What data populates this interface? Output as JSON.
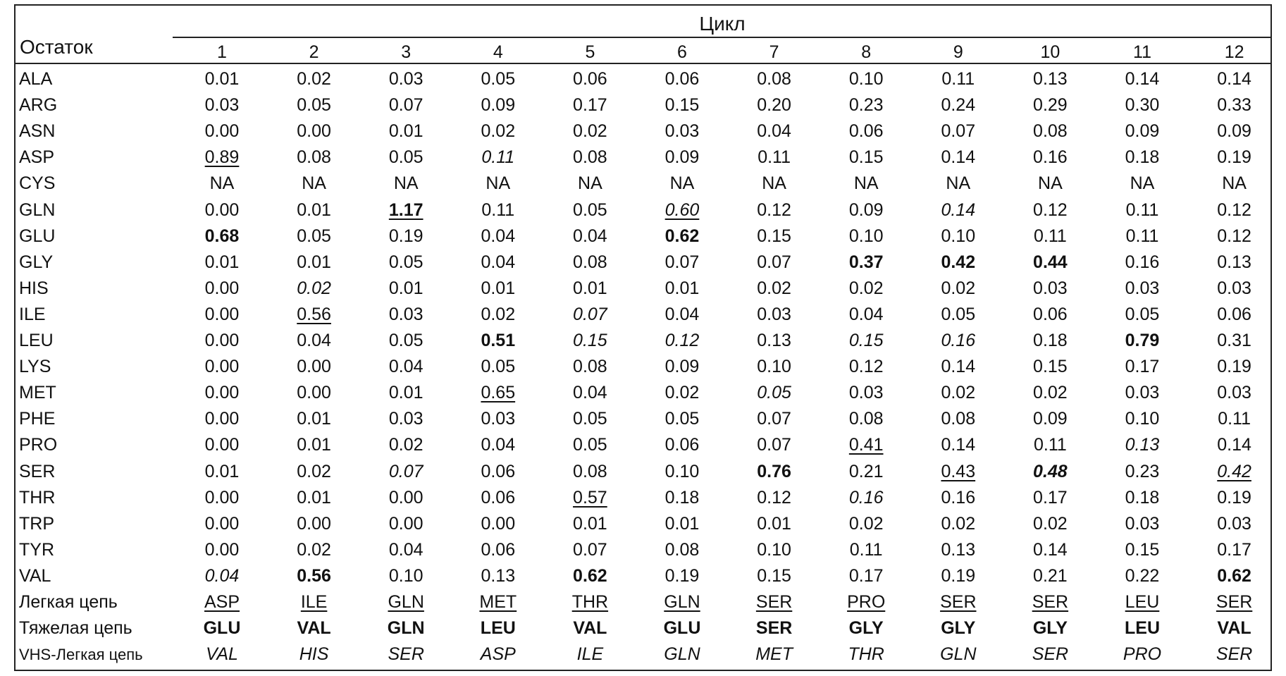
{
  "header": {
    "residue": "Остаток",
    "cycle": "Цикл",
    "cycles": [
      "1",
      "2",
      "3",
      "4",
      "5",
      "6",
      "7",
      "8",
      "9",
      "10",
      "11",
      "12"
    ]
  },
  "rows": [
    {
      "label": "ALA",
      "values": [
        "0.01",
        "0.02",
        "0.03",
        "0.05",
        "0.06",
        "0.06",
        "0.08",
        "0.10",
        "0.11",
        "0.13",
        "0.14",
        "0.14"
      ],
      "styles": [
        "",
        "",
        "",
        "",
        "",
        "",
        "",
        "",
        "",
        "",
        "",
        ""
      ]
    },
    {
      "label": "ARG",
      "values": [
        "0.03",
        "0.05",
        "0.07",
        "0.09",
        "0.17",
        "0.15",
        "0.20",
        "0.23",
        "0.24",
        "0.29",
        "0.30",
        "0.33"
      ],
      "styles": [
        "",
        "",
        "",
        "",
        "",
        "",
        "",
        "",
        "",
        "",
        "",
        ""
      ]
    },
    {
      "label": "ASN",
      "values": [
        "0.00",
        "0.00",
        "0.01",
        "0.02",
        "0.02",
        "0.03",
        "0.04",
        "0.06",
        "0.07",
        "0.08",
        "0.09",
        "0.09"
      ],
      "styles": [
        "",
        "",
        "",
        "",
        "",
        "",
        "",
        "",
        "",
        "",
        "",
        ""
      ]
    },
    {
      "label": "ASP",
      "values": [
        "0.89",
        "0.08",
        "0.05",
        "0.11",
        "0.08",
        "0.09",
        "0.11",
        "0.15",
        "0.14",
        "0.16",
        "0.18",
        "0.19"
      ],
      "styles": [
        "u",
        "",
        "",
        "i",
        "",
        "",
        "",
        "",
        "",
        "",
        "",
        ""
      ]
    },
    {
      "label": "CYS",
      "values": [
        "NA",
        "NA",
        "NA",
        "NA",
        "NA",
        "NA",
        "NA",
        "NA",
        "NA",
        "NA",
        "NA",
        "NA"
      ],
      "styles": [
        "",
        "",
        "",
        "",
        "",
        "",
        "",
        "",
        "",
        "",
        "",
        ""
      ]
    },
    {
      "label": "GLN",
      "values": [
        "0.00",
        "0.01",
        "1.17",
        "0.11",
        "0.05",
        "0.60",
        "0.12",
        "0.09",
        "0.14",
        "0.12",
        "0.11",
        "0.12"
      ],
      "styles": [
        "",
        "",
        "bu",
        "",
        "",
        "iu",
        "",
        "",
        "i",
        "",
        "",
        ""
      ]
    },
    {
      "label": "GLU",
      "values": [
        "0.68",
        "0.05",
        "0.19",
        "0.04",
        "0.04",
        "0.62",
        "0.15",
        "0.10",
        "0.10",
        "0.11",
        "0.11",
        "0.12"
      ],
      "styles": [
        "b",
        "",
        "",
        "",
        "",
        "b",
        "",
        "",
        "",
        "",
        "",
        ""
      ]
    },
    {
      "label": "GLY",
      "values": [
        "0.01",
        "0.01",
        "0.05",
        "0.04",
        "0.08",
        "0.07",
        "0.07",
        "0.37",
        "0.42",
        "0.44",
        "0.16",
        "0.13"
      ],
      "styles": [
        "",
        "",
        "",
        "",
        "",
        "",
        "",
        "b",
        "b",
        "b",
        "",
        ""
      ]
    },
    {
      "label": "HIS",
      "values": [
        "0.00",
        "0.02",
        "0.01",
        "0.01",
        "0.01",
        "0.01",
        "0.02",
        "0.02",
        "0.02",
        "0.03",
        "0.03",
        "0.03"
      ],
      "styles": [
        "",
        "i",
        "",
        "",
        "",
        "",
        "",
        "",
        "",
        "",
        "",
        ""
      ]
    },
    {
      "label": "ILE",
      "values": [
        "0.00",
        "0.56",
        "0.03",
        "0.02",
        "0.07",
        "0.04",
        "0.03",
        "0.04",
        "0.05",
        "0.06",
        "0.05",
        "0.06"
      ],
      "styles": [
        "",
        "u",
        "",
        "",
        "i",
        "",
        "",
        "",
        "",
        "",
        "",
        ""
      ]
    },
    {
      "label": "LEU",
      "values": [
        "0.00",
        "0.04",
        "0.05",
        "0.51",
        "0.15",
        "0.12",
        "0.13",
        "0.15",
        "0.16",
        "0.18",
        "0.79",
        "0.31"
      ],
      "styles": [
        "",
        "",
        "",
        "b",
        "i",
        "i",
        "",
        "i",
        "i",
        "",
        "b",
        ""
      ]
    },
    {
      "label": "LYS",
      "values": [
        "0.00",
        "0.00",
        "0.04",
        "0.05",
        "0.08",
        "0.09",
        "0.10",
        "0.12",
        "0.14",
        "0.15",
        "0.17",
        "0.19"
      ],
      "styles": [
        "",
        "",
        "",
        "",
        "",
        "",
        "",
        "",
        "",
        "",
        "",
        ""
      ]
    },
    {
      "label": "MET",
      "values": [
        "0.00",
        "0.00",
        "0.01",
        "0.65",
        "0.04",
        "0.02",
        "0.05",
        "0.03",
        "0.02",
        "0.02",
        "0.03",
        "0.03"
      ],
      "styles": [
        "",
        "",
        "",
        "u",
        "",
        "",
        "i",
        "",
        "",
        "",
        "",
        ""
      ]
    },
    {
      "label": "PHE",
      "values": [
        "0.00",
        "0.01",
        "0.03",
        "0.03",
        "0.05",
        "0.05",
        "0.07",
        "0.08",
        "0.08",
        "0.09",
        "0.10",
        "0.11"
      ],
      "styles": [
        "",
        "",
        "",
        "",
        "",
        "",
        "",
        "",
        "",
        "",
        "",
        ""
      ]
    },
    {
      "label": "PRO",
      "values": [
        "0.00",
        "0.01",
        "0.02",
        "0.04",
        "0.05",
        "0.06",
        "0.07",
        "0.41",
        "0.14",
        "0.11",
        "0.13",
        "0.14"
      ],
      "styles": [
        "",
        "",
        "",
        "",
        "",
        "",
        "",
        "u",
        "",
        "",
        "i",
        ""
      ]
    },
    {
      "label": "SER",
      "values": [
        "0.01",
        "0.02",
        "0.07",
        "0.06",
        "0.08",
        "0.10",
        "0.76",
        "0.21",
        "0.43",
        "0.48",
        "0.23",
        "0.42"
      ],
      "styles": [
        "",
        "",
        "i",
        "",
        "",
        "",
        "b",
        "",
        "u",
        "bi",
        "",
        "iu"
      ]
    },
    {
      "label": "THR",
      "values": [
        "0.00",
        "0.01",
        "0.00",
        "0.06",
        "0.57",
        "0.18",
        "0.12",
        "0.16",
        "0.16",
        "0.17",
        "0.18",
        "0.19"
      ],
      "styles": [
        "",
        "",
        "",
        "",
        "u",
        "",
        "",
        "i",
        "",
        "",
        "",
        ""
      ]
    },
    {
      "label": "TRP",
      "values": [
        "0.00",
        "0.00",
        "0.00",
        "0.00",
        "0.01",
        "0.01",
        "0.01",
        "0.02",
        "0.02",
        "0.02",
        "0.03",
        "0.03"
      ],
      "styles": [
        "",
        "",
        "",
        "",
        "",
        "",
        "",
        "",
        "",
        "",
        "",
        ""
      ]
    },
    {
      "label": "TYR",
      "values": [
        "0.00",
        "0.02",
        "0.04",
        "0.06",
        "0.07",
        "0.08",
        "0.10",
        "0.11",
        "0.13",
        "0.14",
        "0.15",
        "0.17"
      ],
      "styles": [
        "",
        "",
        "",
        "",
        "",
        "",
        "",
        "",
        "",
        "",
        "",
        ""
      ]
    },
    {
      "label": "VAL",
      "values": [
        "0.04",
        "0.56",
        "0.10",
        "0.13",
        "0.62",
        "0.19",
        "0.15",
        "0.17",
        "0.19",
        "0.21",
        "0.22",
        "0.62"
      ],
      "styles": [
        "i",
        "b",
        "",
        "",
        "b",
        "",
        "",
        "",
        "",
        "",
        "",
        "b"
      ]
    },
    {
      "label": "Легкая цепь",
      "values": [
        "ASP",
        "ILE",
        "GLN",
        "MET",
        "THR",
        "GLN",
        "SER",
        "PRO",
        "SER",
        "SER",
        "LEU",
        "SER"
      ],
      "styles": [
        "u",
        "u",
        "u",
        "u",
        "u",
        "u",
        "u",
        "u",
        "u",
        "u",
        "u",
        "u"
      ]
    },
    {
      "label": "Тяжелая цепь",
      "values": [
        "GLU",
        "VAL",
        "GLN",
        "LEU",
        "VAL",
        "GLU",
        "SER",
        "GLY",
        "GLY",
        "GLY",
        "LEU",
        "VAL"
      ],
      "styles": [
        "b",
        "b",
        "b",
        "b",
        "b",
        "b",
        "b",
        "b",
        "b",
        "b",
        "b",
        "b"
      ]
    },
    {
      "label": "VHS-Легкая цепь",
      "values": [
        "VAL",
        "HIS",
        "SER",
        "ASP",
        "ILE",
        "GLN",
        "MET",
        "THR",
        "GLN",
        "SER",
        "PRO",
        "SER"
      ],
      "styles": [
        "i",
        "i",
        "i",
        "i",
        "i",
        "i",
        "i",
        "i",
        "i",
        "i",
        "i",
        "i"
      ]
    }
  ]
}
